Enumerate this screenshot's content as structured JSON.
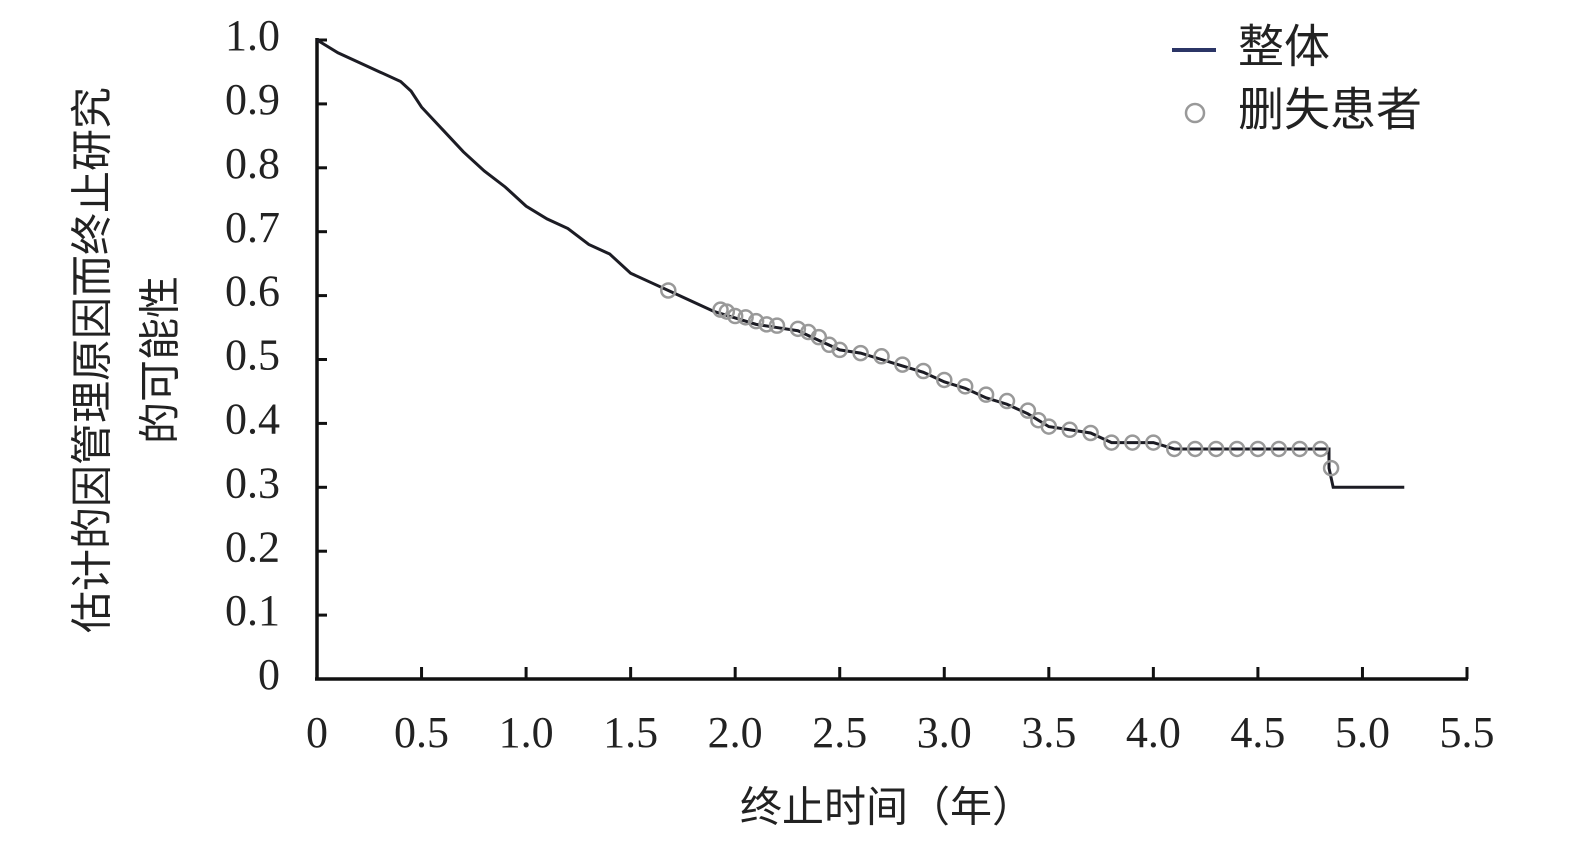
{
  "chart_data": {
    "type": "line",
    "xlabel": "终止时间（年）",
    "ylabel": [
      "估计的因管理原因而终止研究",
      "的可能性"
    ],
    "xlim": [
      0,
      5.5
    ],
    "ylim": [
      0,
      1
    ],
    "xticks": [
      0,
      0.5,
      {
        "value": 1,
        "label": "1.0"
      },
      1.5,
      {
        "value": 2,
        "label": "2.0"
      },
      2.5,
      {
        "value": 3,
        "label": "3.0"
      },
      3.5,
      {
        "value": 4,
        "label": "4.0"
      },
      4.5,
      {
        "value": 5,
        "label": "5.0"
      },
      5.5
    ],
    "yticks": [
      0,
      0.1,
      0.2,
      0.3,
      0.4,
      0.5,
      0.6,
      0.7,
      0.8,
      0.9,
      {
        "value": 1,
        "label": "1.0"
      }
    ],
    "legend": "upper right",
    "series": [
      {
        "name": "整体",
        "color": "#1c1c24",
        "legend_color": "#2b3566",
        "style": "line",
        "x": [
          0,
          0.05,
          0.1,
          0.2,
          0.3,
          0.4,
          0.45,
          0.5,
          0.6,
          0.7,
          0.8,
          0.9,
          1.0,
          1.1,
          1.2,
          1.3,
          1.4,
          1.5,
          1.6,
          1.7,
          1.8,
          1.9,
          2.0,
          2.1,
          2.2,
          2.3,
          2.4,
          2.5,
          2.6,
          2.7,
          2.8,
          2.9,
          3.0,
          3.1,
          3.2,
          3.3,
          3.4,
          3.5,
          3.6,
          3.7,
          3.8,
          4.0,
          4.1,
          4.84,
          4.84,
          4.86,
          5.2
        ],
        "values": [
          1.0,
          0.99,
          0.98,
          0.965,
          0.95,
          0.935,
          0.92,
          0.895,
          0.86,
          0.825,
          0.795,
          0.77,
          0.74,
          0.72,
          0.705,
          0.68,
          0.665,
          0.635,
          0.62,
          0.605,
          0.59,
          0.575,
          0.565,
          0.555,
          0.55,
          0.545,
          0.53,
          0.515,
          0.51,
          0.5,
          0.49,
          0.48,
          0.465,
          0.455,
          0.44,
          0.43,
          0.415,
          0.395,
          0.39,
          0.385,
          0.37,
          0.37,
          0.36,
          0.36,
          0.33,
          0.3,
          0.3
        ]
      },
      {
        "name": "删失患者",
        "color": "#999999",
        "style": "marker",
        "x": [
          1.68,
          1.93,
          1.96,
          2.0,
          2.05,
          2.1,
          2.15,
          2.2,
          2.3,
          2.35,
          2.4,
          2.45,
          2.5,
          2.6,
          2.7,
          2.8,
          2.9,
          3.0,
          3.1,
          3.2,
          3.3,
          3.4,
          3.45,
          3.5,
          3.6,
          3.7,
          3.8,
          3.9,
          4.0,
          4.1,
          4.2,
          4.3,
          4.4,
          4.5,
          4.6,
          4.7,
          4.8,
          4.85
        ],
        "values": [
          0.608,
          0.578,
          0.575,
          0.568,
          0.566,
          0.56,
          0.555,
          0.553,
          0.548,
          0.543,
          0.535,
          0.523,
          0.515,
          0.51,
          0.505,
          0.492,
          0.482,
          0.468,
          0.458,
          0.445,
          0.435,
          0.42,
          0.405,
          0.395,
          0.39,
          0.385,
          0.37,
          0.37,
          0.37,
          0.36,
          0.36,
          0.36,
          0.36,
          0.36,
          0.36,
          0.36,
          0.36,
          0.33
        ]
      }
    ]
  }
}
